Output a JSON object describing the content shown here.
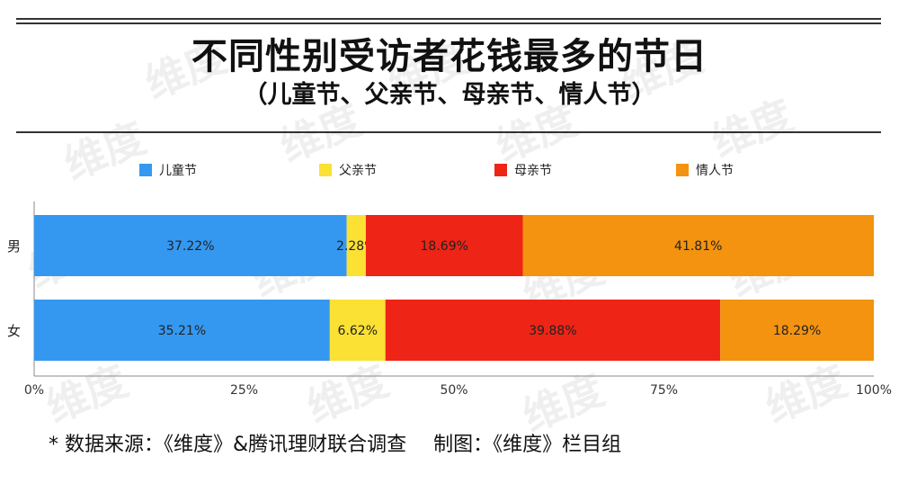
{
  "header": {
    "title": "不同性别受访者花钱最多的节日",
    "subtitle": "（儿童节、父亲节、母亲节、情人节）"
  },
  "footer": {
    "source": "* 数据来源：《维度》&腾讯理财联合调查",
    "credit": "制图：《维度》栏目组"
  },
  "watermark": "维度",
  "chart_data": {
    "type": "bar",
    "orientation": "horizontal",
    "stacked": true,
    "percent_stacked": true,
    "categories": [
      "男",
      "女"
    ],
    "series": [
      {
        "name": "儿童节",
        "color": "#3598f0",
        "values": [
          37.22,
          35.21
        ],
        "labels": [
          "37.22%",
          "35.21%"
        ]
      },
      {
        "name": "父亲节",
        "color": "#fae134",
        "values": [
          2.28,
          6.62
        ],
        "labels": [
          "2.28%",
          "6.62%"
        ]
      },
      {
        "name": "母亲节",
        "color": "#ee2416",
        "values": [
          18.69,
          39.88
        ],
        "labels": [
          "18.69%",
          "39.88%"
        ]
      },
      {
        "name": "情人节",
        "color": "#f4930f",
        "values": [
          41.81,
          18.29
        ],
        "labels": [
          "41.81%",
          "18.29%"
        ]
      }
    ],
    "x_ticks": [
      "0%",
      "25%",
      "50%",
      "75%",
      "100%"
    ],
    "xlim": [
      0,
      100
    ],
    "legend": "top",
    "grid": false
  }
}
